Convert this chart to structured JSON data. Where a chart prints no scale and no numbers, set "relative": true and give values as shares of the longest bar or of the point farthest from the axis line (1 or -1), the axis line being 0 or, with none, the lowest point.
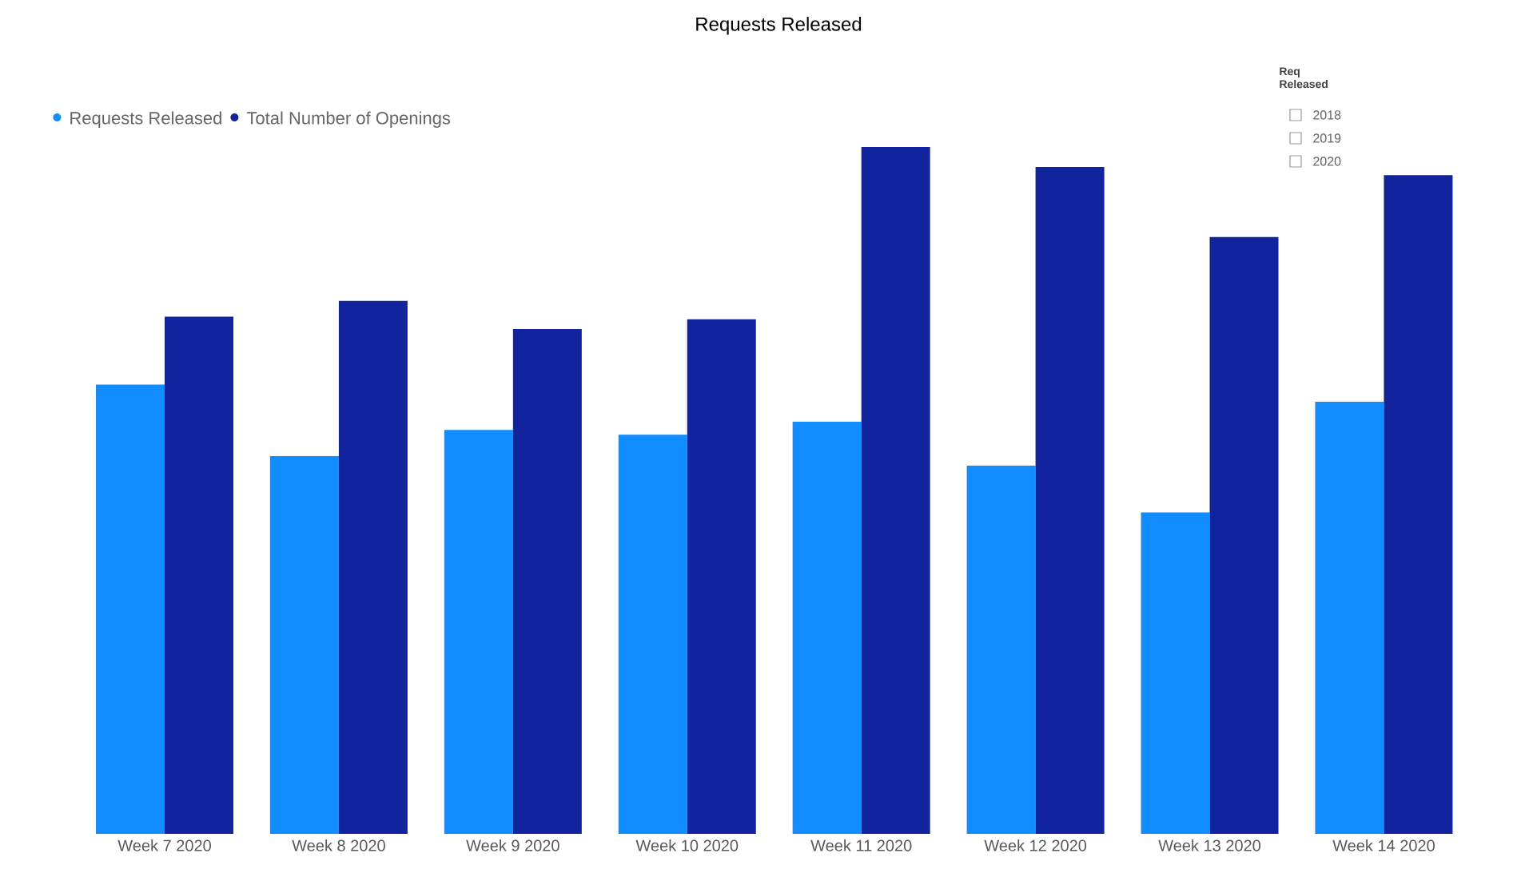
{
  "chart_data": {
    "type": "bar",
    "title": "Requests Released",
    "relative": true,
    "legend": "top left",
    "categories": [
      "Week 7 2020",
      "Week 8 2020",
      "Week 9 2020",
      "Week 10 2020",
      "Week 11 2020",
      "Week 12 2020",
      "Week 13 2020",
      "Week 14 2020"
    ],
    "series": [
      {
        "name": "Requests Released",
        "color": "#118dff",
        "values": [
          0.654,
          0.55,
          0.588,
          0.581,
          0.6,
          0.536,
          0.468,
          0.629
        ]
      },
      {
        "name": "Total Number of Openings",
        "color": "#12239e",
        "values": [
          0.753,
          0.776,
          0.735,
          0.749,
          1,
          0.971,
          0.869,
          0.959
        ]
      }
    ],
    "annotations": [
      "Req Released",
      "2018",
      "2019",
      "2020"
    ]
  }
}
